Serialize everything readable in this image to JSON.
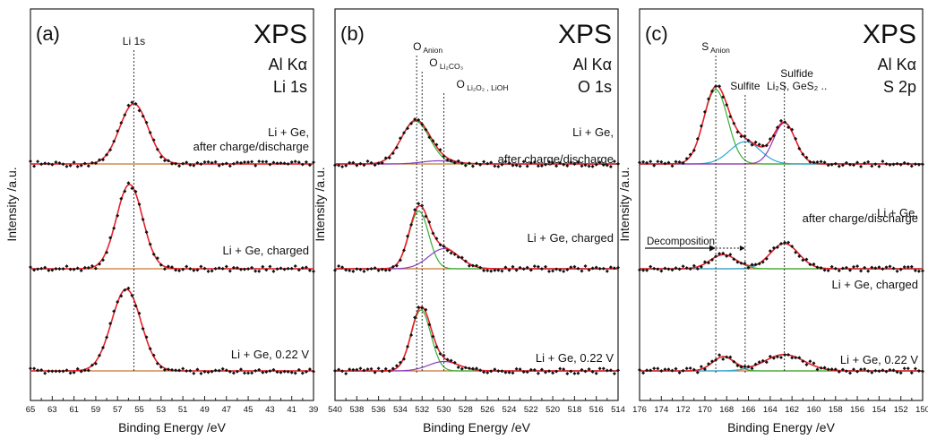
{
  "colors": {
    "fit_envelope": "#e8202a",
    "baseline": "#c8782c",
    "points": "#111111",
    "o_anion_component": "#35b035",
    "o_carbonate_component": "#8a3cc0",
    "s_anion_component": "#35b035",
    "sulfite_component": "#29a8d8",
    "sulfide_component": "#8a3cc0",
    "guide": "#333333"
  },
  "chart_data": [
    {
      "type": "line",
      "panel_label": "(a)",
      "technique": "XPS",
      "source": "Al Kα",
      "region": "Li 1s",
      "xlabel": "Binding Energy /eV",
      "ylabel": "Intensity /a.u.",
      "xlim": [
        65,
        39
      ],
      "x_reversed": true,
      "ticks": [
        "65",
        "63",
        "61",
        "59",
        "57",
        "55",
        "53",
        "51",
        "49",
        "47",
        "45",
        "43",
        "41",
        "39"
      ],
      "grid": false,
      "peak_annotations": [
        {
          "label": "Li 1s",
          "x": 55.5
        }
      ],
      "series": [
        {
          "label_lines": [
            "Li + Ge,",
            "after charge/discharge"
          ],
          "components": [
            {
              "center": 55.5,
              "height": 0.7,
              "width": 1.3
            }
          ]
        },
        {
          "label_lines": [
            "Li + Ge, charged"
          ],
          "components": [
            {
              "center": 55.9,
              "height": 0.98,
              "width": 1.2
            }
          ]
        },
        {
          "label_lines": [
            "Li + Ge, 0.22 V"
          ],
          "components": [
            {
              "center": 56.2,
              "height": 0.95,
              "width": 1.35
            }
          ]
        }
      ]
    },
    {
      "type": "line",
      "panel_label": "(b)",
      "technique": "XPS",
      "source": "Al Kα",
      "region": "O 1s",
      "xlabel": "Binding Energy /eV",
      "ylabel": "Intensity /a.u.",
      "xlim": [
        540,
        514
      ],
      "x_reversed": true,
      "ticks": [
        "540",
        "538",
        "536",
        "534",
        "532",
        "530",
        "528",
        "526",
        "524",
        "522",
        "520",
        "518",
        "516",
        "514"
      ],
      "grid": false,
      "peak_annotations": [
        {
          "label": "O",
          "sub": "Anion",
          "x": 532.5
        },
        {
          "label": "O",
          "sub": "Li₂CO₃",
          "x": 532.0
        },
        {
          "label": "O",
          "sub": "Li₂O₂ , LiOH",
          "x": 530.0
        }
      ],
      "series": [
        {
          "label_lines": [
            "Li + Ge,",
            "after charge/discharge"
          ],
          "components": [
            {
              "center": 532.6,
              "height": 0.68,
              "width": 1.3
            },
            {
              "center": 530.5,
              "height": 0.05,
              "width": 1.5
            }
          ]
        },
        {
          "label_lines": [
            "Li + Ge, charged"
          ],
          "components": [
            {
              "center": 532.3,
              "height": 0.92,
              "width": 0.9
            },
            {
              "center": 530.0,
              "height": 0.32,
              "width": 1.4
            }
          ]
        },
        {
          "label_lines": [
            "Li + Ge, 0.22 V"
          ],
          "components": [
            {
              "center": 532.1,
              "height": 0.97,
              "width": 0.9
            },
            {
              "center": 530.0,
              "height": 0.15,
              "width": 1.4
            }
          ]
        }
      ]
    },
    {
      "type": "line",
      "panel_label": "(c)",
      "technique": "XPS",
      "source": "Al Kα",
      "region": "S 2p",
      "xlabel": "Binding Energy /eV",
      "ylabel": "Intensity /a.u.",
      "xlim": [
        176,
        150
      ],
      "x_reversed": true,
      "ticks": [
        "176",
        "174",
        "172",
        "170",
        "168",
        "166",
        "164",
        "162",
        "160",
        "158",
        "156",
        "154",
        "152",
        "150"
      ],
      "grid": false,
      "peak_annotations": [
        {
          "label": "S",
          "sub": "Anion",
          "x": 169.0
        },
        {
          "label": "Sulfite",
          "x": 166.3
        },
        {
          "label": "Sulfide",
          "line2": "Li₂S, GeS₂ ..",
          "x": 162.7
        }
      ],
      "decomposition": {
        "label": "Decomposition",
        "from_x": 169.0,
        "to_x": 166.3
      },
      "series": [
        {
          "label_lines": [
            "Li + Ge,",
            "after charge/discharge"
          ],
          "components": [
            {
              "center": 169.0,
              "height": 1.0,
              "width": 1.1
            },
            {
              "center": 166.3,
              "height": 0.3,
              "width": 1.4
            },
            {
              "center": 162.7,
              "height": 0.55,
              "width": 1.0
            }
          ]
        },
        {
          "label_lines": [
            "Li + Ge, charged"
          ],
          "components": [
            {
              "center": 168.3,
              "height": 0.19,
              "width": 1.2
            },
            {
              "center": 162.7,
              "height": 0.34,
              "width": 1.3
            }
          ]
        },
        {
          "label_lines": [
            "Li + Ge, 0.22 V"
          ],
          "components": [
            {
              "center": 168.3,
              "height": 0.19,
              "width": 1.0
            },
            {
              "center": 162.7,
              "height": 0.22,
              "width": 1.8
            }
          ]
        }
      ]
    }
  ]
}
